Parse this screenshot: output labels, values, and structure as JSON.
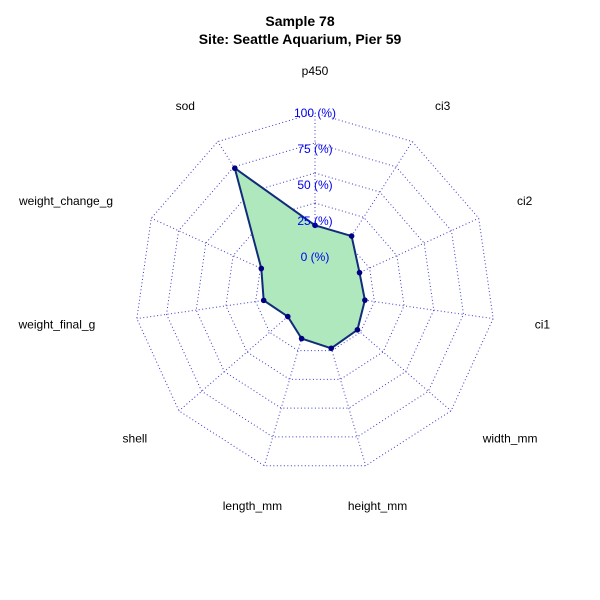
{
  "chart_data": {
    "type": "radar",
    "title": "Sample 78",
    "subtitle": "Site: Seattle Aquarium, Pier 59",
    "axes": [
      "p450",
      "ci3",
      "ci2",
      "ci1",
      "width_mm",
      "height_mm",
      "length_mm",
      "shell",
      "weight_final_g",
      "weight_change_g",
      "sod"
    ],
    "ring_labels": [
      "0 (%)",
      "25 (%)",
      "50 (%)",
      "75 (%)",
      "100 (%)"
    ],
    "range": [
      0,
      100
    ],
    "values": [
      22,
      22,
      9,
      10,
      14,
      15,
      8,
      0,
      11,
      16,
      78
    ],
    "colors": {
      "fill": "#aee8bc",
      "line": "#0f2d7a",
      "point": "#000080",
      "grid": "#3a3ac8",
      "ring_label": "#0000ee"
    },
    "grid": true
  }
}
